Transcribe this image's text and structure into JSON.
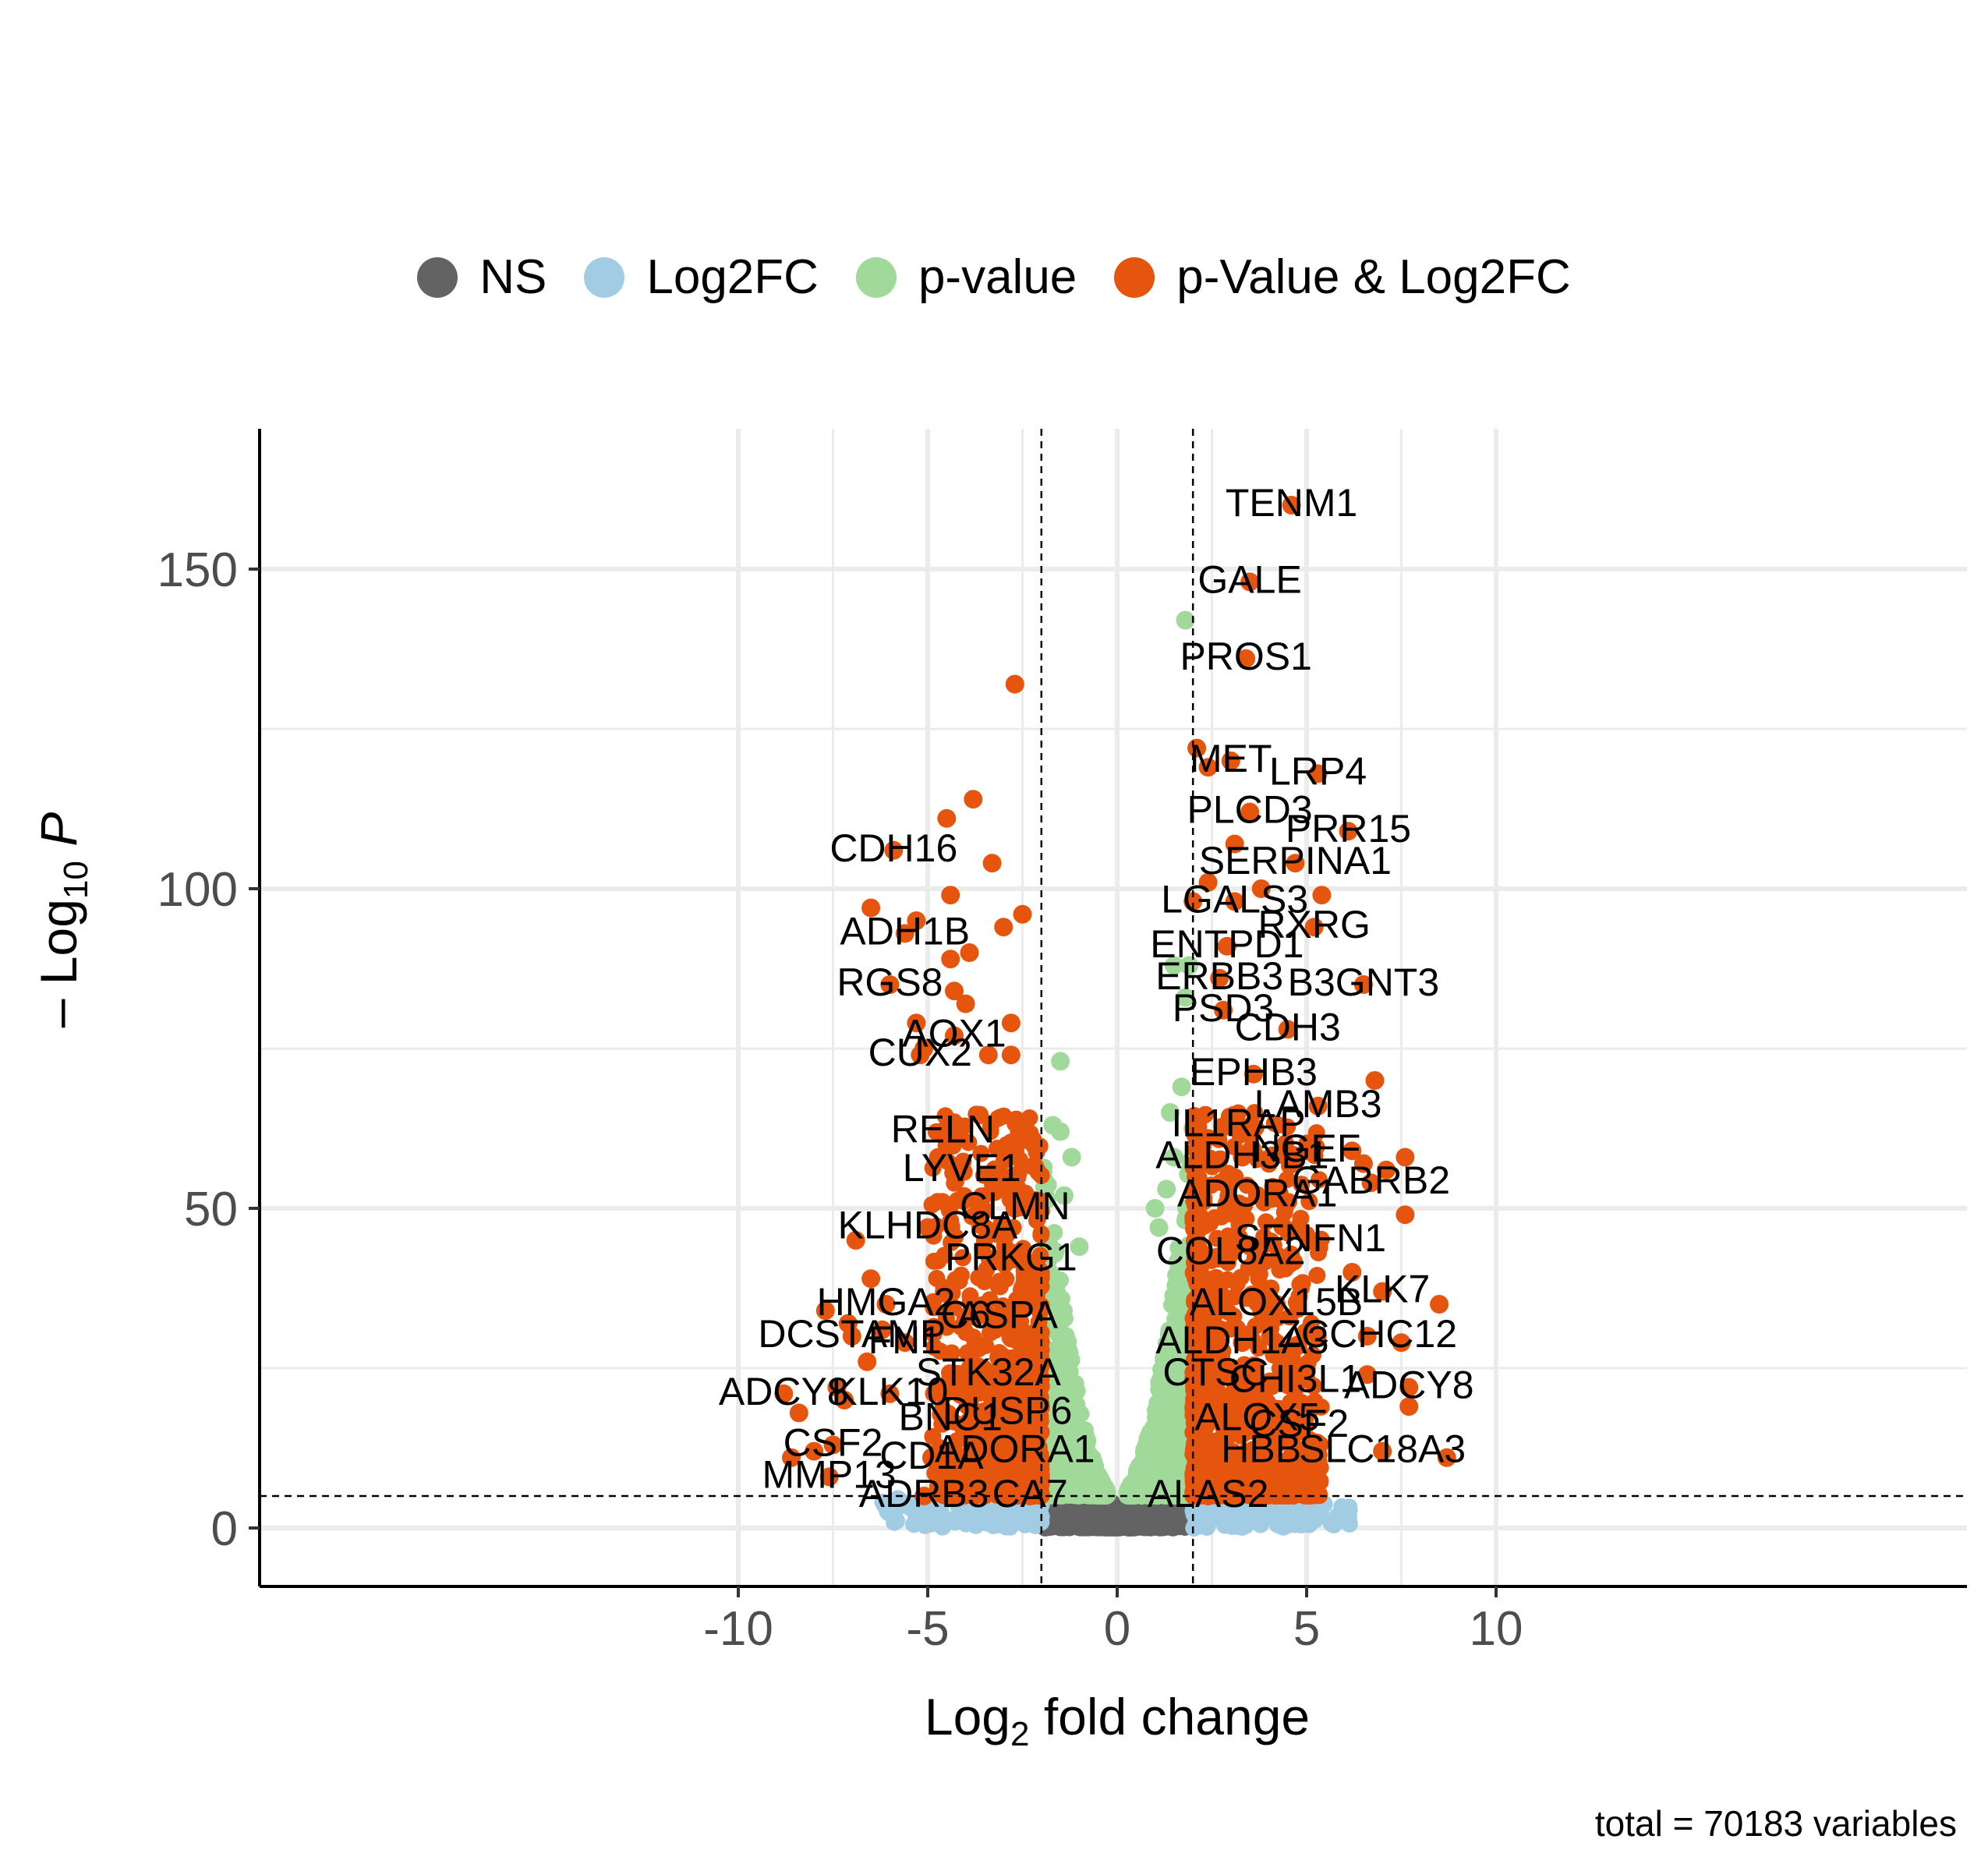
{
  "chart_data": {
    "type": "scatter",
    "title": "",
    "xlabel": "Log2 fold change",
    "ylabel": "-Log10 P",
    "xlim": [
      -11.4,
      11.1
    ],
    "ylim": [
      -7,
      173
    ],
    "x_ticks": [
      -10,
      -5,
      0,
      5,
      10
    ],
    "y_ticks": [
      0,
      50,
      100,
      150
    ],
    "x_tick_labels": [
      "-10",
      "-5",
      "0",
      "5",
      "10"
    ],
    "y_tick_labels": [
      "0",
      "50",
      "100",
      "150"
    ],
    "grid": true,
    "legend_position": "top",
    "thresholds": {
      "log2fc": [
        -2,
        2
      ],
      "neg_log10_p": 5
    },
    "caption": "total = 70183 variables",
    "series": [
      {
        "name": "NS",
        "color": "#636363"
      },
      {
        "name": "Log2FC",
        "color": "#a2cce3"
      },
      {
        "name": "p-value",
        "color": "#a1d99b"
      },
      {
        "name": "p-Value & Log2FC",
        "color": "#e6550d"
      }
    ],
    "labeled_points": [
      {
        "label": "TENM1",
        "x": 4.6,
        "y": 160
      },
      {
        "label": "GALE",
        "x": 3.5,
        "y": 148
      },
      {
        "label": "PROS1",
        "x": 3.4,
        "y": 136
      },
      {
        "label": "MET",
        "x": 3.0,
        "y": 120
      },
      {
        "label": "LRP4",
        "x": 5.3,
        "y": 118
      },
      {
        "label": "PLCD3",
        "x": 3.5,
        "y": 112
      },
      {
        "label": "PRR15",
        "x": 6.1,
        "y": 109
      },
      {
        "label": "SERPINA1",
        "x": 4.7,
        "y": 104
      },
      {
        "label": "LGALS3",
        "x": 3.1,
        "y": 98
      },
      {
        "label": "RXRG",
        "x": 5.2,
        "y": 94
      },
      {
        "label": "ENTPD1",
        "x": 2.9,
        "y": 91
      },
      {
        "label": "ERBB3",
        "x": 2.7,
        "y": 86
      },
      {
        "label": "B3GNT3",
        "x": 6.5,
        "y": 85
      },
      {
        "label": "PSD3",
        "x": 2.8,
        "y": 81
      },
      {
        "label": "CDH3",
        "x": 4.5,
        "y": 78
      },
      {
        "label": "EPHB3",
        "x": 3.6,
        "y": 71
      },
      {
        "label": "LAMB3",
        "x": 5.3,
        "y": 66
      },
      {
        "label": "IL1RAP",
        "x": 3.2,
        "y": 63
      },
      {
        "label": "NGEF",
        "x": 5.0,
        "y": 59
      },
      {
        "label": "ALDH3B1",
        "x": 3.3,
        "y": 58
      },
      {
        "label": "GABRB2",
        "x": 6.7,
        "y": 54
      },
      {
        "label": "ADORA1",
        "x": 3.7,
        "y": 52
      },
      {
        "label": "SFNFN1",
        "x": 5.1,
        "y": 45
      },
      {
        "label": "COL8A2",
        "x": 3.0,
        "y": 43
      },
      {
        "label": "KLK7",
        "x": 7.0,
        "y": 37
      },
      {
        "label": "ALOX15B",
        "x": 4.2,
        "y": 35
      },
      {
        "label": "ZCCHC12",
        "x": 6.6,
        "y": 30
      },
      {
        "label": "ALDH1A3",
        "x": 3.3,
        "y": 29
      },
      {
        "label": "ADCY8",
        "x": 7.7,
        "y": 22
      },
      {
        "label": "CTSC",
        "x": 2.6,
        "y": 24
      },
      {
        "label": "CHI3L1",
        "x": 4.7,
        "y": 23
      },
      {
        "label": "ALOX5",
        "x": 3.7,
        "y": 17
      },
      {
        "label": "CSF2",
        "x": 4.8,
        "y": 16
      },
      {
        "label": "HBB",
        "x": 3.8,
        "y": 12
      },
      {
        "label": "SLC18A3",
        "x": 7.0,
        "y": 12
      },
      {
        "label": "ALAS2",
        "x": 2.4,
        "y": 5
      },
      {
        "label": "CDH16",
        "x": -5.9,
        "y": 106
      },
      {
        "label": "ADH1B",
        "x": -5.6,
        "y": 93
      },
      {
        "label": "RGS8",
        "x": -6.0,
        "y": 85
      },
      {
        "label": "CUX2",
        "x": -5.2,
        "y": 74
      },
      {
        "label": "AOX1",
        "x": -4.3,
        "y": 77
      },
      {
        "label": "RELN",
        "x": -4.6,
        "y": 62
      },
      {
        "label": "LYVE1",
        "x": -4.1,
        "y": 56
      },
      {
        "label": "CLMN",
        "x": -2.7,
        "y": 50
      },
      {
        "label": "KLHDC8A",
        "x": -5.0,
        "y": 47
      },
      {
        "label": "PRKG1",
        "x": -2.8,
        "y": 42
      },
      {
        "label": "HMGA2",
        "x": -6.1,
        "y": 35
      },
      {
        "label": "C6",
        "x": -4.0,
        "y": 33
      },
      {
        "label": "ASPA",
        "x": -2.9,
        "y": 33
      },
      {
        "label": "DCSTAMP",
        "x": -7.0,
        "y": 30
      },
      {
        "label": "FN1",
        "x": -5.6,
        "y": 29
      },
      {
        "label": "STK32A",
        "x": -3.4,
        "y": 24
      },
      {
        "label": "ADCY8",
        "x": -8.8,
        "y": 21
      },
      {
        "label": "KLK10",
        "x": -6.0,
        "y": 21
      },
      {
        "label": "DUSP6",
        "x": -2.9,
        "y": 18
      },
      {
        "label": "BNC1",
        "x": -4.4,
        "y": 17
      },
      {
        "label": "CSF2",
        "x": -7.5,
        "y": 13
      },
      {
        "label": "CD1A",
        "x": -4.9,
        "y": 11
      },
      {
        "label": "ADORA1",
        "x": -2.7,
        "y": 12
      },
      {
        "label": "MMP13",
        "x": -7.6,
        "y": 8
      },
      {
        "label": "ADRB3",
        "x": -5.1,
        "y": 5
      },
      {
        "label": "CA7",
        "x": -2.3,
        "y": 5
      }
    ],
    "extra_points": [
      [
        -2.7,
        132
      ],
      [
        -3.8,
        114
      ],
      [
        -4.5,
        111
      ],
      [
        -3.3,
        104
      ],
      [
        -4.4,
        99
      ],
      [
        -6.5,
        97
      ],
      [
        -5.3,
        95
      ],
      [
        -2.5,
        96
      ],
      [
        -3.0,
        94
      ],
      [
        -4.4,
        89
      ],
      [
        -3.9,
        90
      ],
      [
        -4.3,
        84
      ],
      [
        -4.0,
        82
      ],
      [
        -5.3,
        79
      ],
      [
        -2.8,
        79
      ],
      [
        -3.4,
        74
      ],
      [
        -2.8,
        74
      ],
      [
        -5.1,
        75
      ],
      [
        1.8,
        142
      ],
      [
        2.1,
        122
      ],
      [
        2.4,
        119
      ],
      [
        3.1,
        107
      ],
      [
        3.8,
        100
      ],
      [
        2.4,
        101
      ],
      [
        5.4,
        99
      ],
      [
        2.0,
        98
      ],
      [
        6.8,
        70
      ],
      [
        7.6,
        58
      ],
      [
        7.1,
        56
      ],
      [
        7.6,
        49
      ],
      [
        8.5,
        35
      ],
      [
        8.7,
        11
      ],
      [
        7.5,
        29
      ],
      [
        7.7,
        19
      ],
      [
        6.6,
        24
      ],
      [
        6.2,
        40
      ],
      [
        6.2,
        59
      ],
      [
        6.5,
        57
      ],
      [
        -8.4,
        18
      ],
      [
        -8.6,
        11
      ],
      [
        -8.0,
        12
      ],
      [
        -7.7,
        34
      ],
      [
        -7.4,
        22
      ],
      [
        -7.2,
        20
      ],
      [
        -7.1,
        32
      ],
      [
        -6.9,
        45
      ],
      [
        -6.6,
        26
      ],
      [
        -6.5,
        39
      ],
      [
        -6.2,
        31
      ],
      [
        1.9,
        88
      ],
      [
        1.5,
        88
      ],
      [
        1.7,
        69
      ],
      [
        1.8,
        83
      ],
      [
        -1.5,
        73
      ],
      [
        -1.7,
        63
      ],
      [
        -1.5,
        62
      ],
      [
        -1.2,
        58
      ],
      [
        -1.0,
        44
      ],
      [
        -1.4,
        52
      ],
      [
        1.4,
        65
      ],
      [
        1.5,
        58
      ],
      [
        1.3,
        53
      ],
      [
        1.1,
        47
      ],
      [
        1.0,
        50
      ]
    ]
  }
}
